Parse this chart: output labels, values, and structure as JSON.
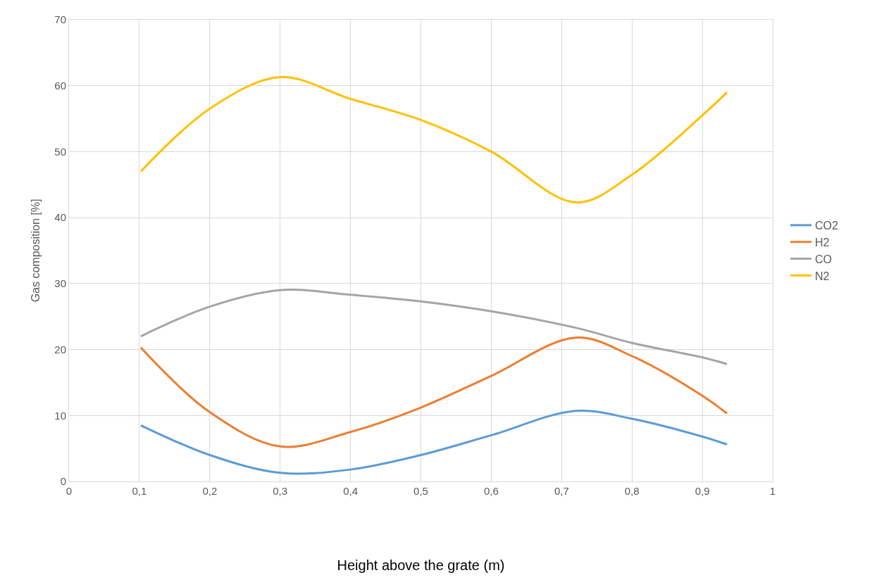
{
  "chart_data": {
    "type": "line",
    "xlabel": "Height above the grate (m)",
    "ylabel": "Gas composition [%]",
    "x": [
      0.102,
      0.2,
      0.3,
      0.4,
      0.5,
      0.6,
      0.72,
      0.8,
      0.9,
      0.935
    ],
    "xlim": [
      0,
      1
    ],
    "xticks": [
      {
        "value": 0,
        "label": "0"
      },
      {
        "value": 0.1,
        "label": "0,1"
      },
      {
        "value": 0.2,
        "label": "0,2"
      },
      {
        "value": 0.3,
        "label": "0,3"
      },
      {
        "value": 0.4,
        "label": "0,4"
      },
      {
        "value": 0.5,
        "label": "0,5"
      },
      {
        "value": 0.6,
        "label": "0,6"
      },
      {
        "value": 0.7,
        "label": "0,7"
      },
      {
        "value": 0.8,
        "label": "0,8"
      },
      {
        "value": 0.9,
        "label": "0,9"
      },
      {
        "value": 1,
        "label": "1"
      }
    ],
    "ylim": [
      0,
      70
    ],
    "yticks": [
      0,
      10,
      20,
      30,
      40,
      50,
      60,
      70
    ],
    "grid": true,
    "legend": "right",
    "marker": "none",
    "line_style": "solid",
    "series": [
      {
        "name": "CO2",
        "color": "#5b9bd5",
        "values": [
          8.5,
          4,
          1.3,
          1.8,
          4,
          7,
          10.7,
          9.5,
          6.8,
          5.6
        ]
      },
      {
        "name": "H2",
        "color": "#ed7d31",
        "values": [
          20.3,
          10.5,
          5.3,
          7.5,
          11.2,
          16,
          21.8,
          19,
          13,
          10.3
        ]
      },
      {
        "name": "CO",
        "color": "#a5a5a5",
        "values": [
          22,
          26.5,
          29,
          28.3,
          27.3,
          25.8,
          23.3,
          21,
          18.8,
          17.8
        ]
      },
      {
        "name": "N2",
        "color": "#ffc000",
        "values": [
          47,
          56.5,
          61.3,
          58,
          54.8,
          50,
          42.3,
          46.5,
          55.5,
          59
        ]
      }
    ]
  }
}
